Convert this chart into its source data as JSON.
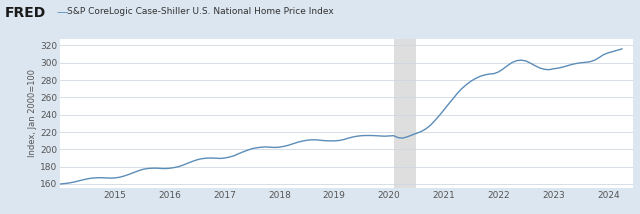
{
  "title": "S&P CoreLogic Case-Shiller U.S. National Home Price Index",
  "ylabel": "Index, Jan 2000=100",
  "line_color": "#5b8db8",
  "background_color": "#dce6f0",
  "plot_bg_color": "#ffffff",
  "recession_color": "#dedede",
  "recession_start": 2020.083,
  "recession_end": 2020.5,
  "ylim": [
    155,
    328
  ],
  "xlim_start": 2014.0,
  "xlim_end": 2024.45,
  "yticks": [
    160,
    180,
    200,
    220,
    240,
    260,
    280,
    300,
    320
  ],
  "xtick_years": [
    2015,
    2016,
    2017,
    2018,
    2019,
    2020,
    2021,
    2022,
    2023,
    2024
  ],
  "data": {
    "dates": [
      2014.0,
      2014.083,
      2014.167,
      2014.25,
      2014.333,
      2014.417,
      2014.5,
      2014.583,
      2014.667,
      2014.75,
      2014.833,
      2014.917,
      2015.0,
      2015.083,
      2015.167,
      2015.25,
      2015.333,
      2015.417,
      2015.5,
      2015.583,
      2015.667,
      2015.75,
      2015.833,
      2015.917,
      2016.0,
      2016.083,
      2016.167,
      2016.25,
      2016.333,
      2016.417,
      2016.5,
      2016.583,
      2016.667,
      2016.75,
      2016.833,
      2016.917,
      2017.0,
      2017.083,
      2017.167,
      2017.25,
      2017.333,
      2017.417,
      2017.5,
      2017.583,
      2017.667,
      2017.75,
      2017.833,
      2017.917,
      2018.0,
      2018.083,
      2018.167,
      2018.25,
      2018.333,
      2018.417,
      2018.5,
      2018.583,
      2018.667,
      2018.75,
      2018.833,
      2018.917,
      2019.0,
      2019.083,
      2019.167,
      2019.25,
      2019.333,
      2019.417,
      2019.5,
      2019.583,
      2019.667,
      2019.75,
      2019.833,
      2019.917,
      2020.0,
      2020.083,
      2020.167,
      2020.25,
      2020.333,
      2020.417,
      2020.5,
      2020.583,
      2020.667,
      2020.75,
      2020.833,
      2020.917,
      2021.0,
      2021.083,
      2021.167,
      2021.25,
      2021.333,
      2021.417,
      2021.5,
      2021.583,
      2021.667,
      2021.75,
      2021.833,
      2021.917,
      2022.0,
      2022.083,
      2022.167,
      2022.25,
      2022.333,
      2022.417,
      2022.5,
      2022.583,
      2022.667,
      2022.75,
      2022.833,
      2022.917,
      2023.0,
      2023.083,
      2023.167,
      2023.25,
      2023.333,
      2023.417,
      2023.5,
      2023.583,
      2023.667,
      2023.75,
      2023.833,
      2023.917,
      2024.0,
      2024.083,
      2024.167,
      2024.25
    ],
    "values": [
      160.0,
      160.5,
      161.2,
      162.2,
      163.5,
      164.8,
      166.0,
      166.8,
      167.2,
      167.3,
      167.0,
      166.8,
      167.0,
      167.8,
      169.2,
      171.0,
      173.0,
      175.0,
      176.8,
      177.8,
      178.2,
      178.3,
      178.0,
      177.8,
      178.2,
      179.0,
      180.2,
      182.0,
      184.2,
      186.2,
      188.0,
      189.2,
      189.8,
      190.0,
      189.8,
      189.5,
      190.0,
      191.0,
      192.5,
      194.8,
      197.0,
      199.0,
      200.8,
      201.8,
      202.5,
      202.8,
      202.5,
      202.2,
      202.5,
      203.5,
      204.8,
      206.5,
      208.2,
      209.5,
      210.5,
      211.0,
      211.0,
      210.5,
      210.0,
      209.8,
      209.8,
      210.2,
      211.2,
      212.8,
      214.2,
      215.2,
      215.8,
      216.0,
      216.0,
      215.8,
      215.5,
      215.2,
      215.5,
      215.8,
      213.5,
      213.0,
      214.5,
      216.5,
      218.5,
      220.5,
      223.5,
      227.5,
      233.0,
      239.0,
      245.5,
      252.0,
      258.5,
      265.0,
      270.5,
      275.0,
      279.0,
      282.0,
      284.5,
      286.0,
      287.0,
      287.5,
      289.5,
      293.0,
      297.0,
      300.5,
      302.5,
      303.0,
      302.0,
      299.5,
      296.5,
      294.0,
      292.5,
      292.0,
      293.0,
      293.8,
      295.0,
      296.5,
      298.0,
      299.2,
      300.0,
      300.5,
      301.2,
      303.0,
      306.0,
      309.5,
      311.5,
      313.0,
      314.5,
      316.0
    ]
  }
}
